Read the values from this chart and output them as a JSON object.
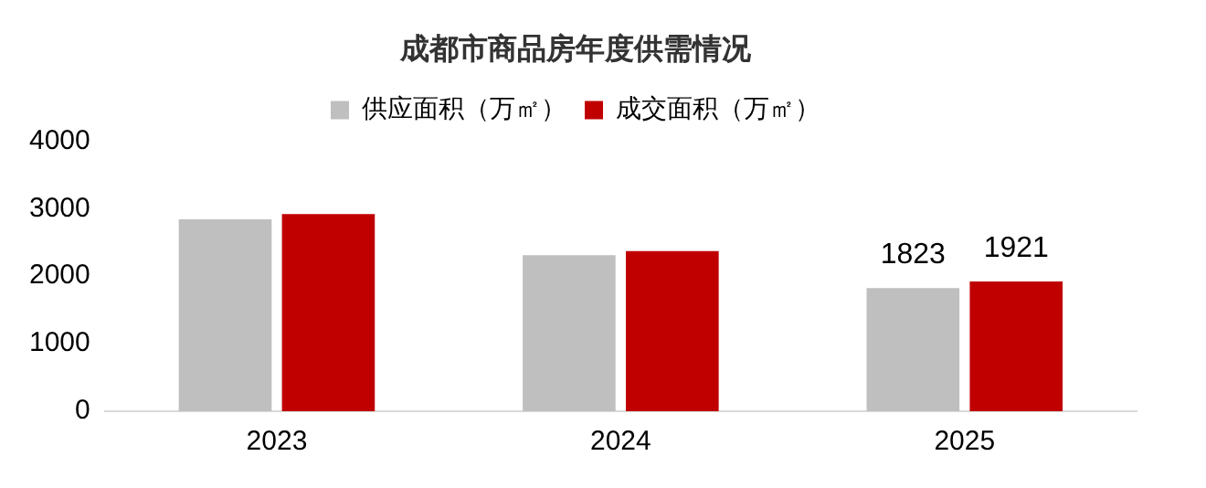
{
  "chart_data": {
    "type": "bar",
    "title": "成都市商品房年度供需情况",
    "categories": [
      "2023",
      "2024",
      "2025"
    ],
    "series": [
      {
        "name": "供应面积（万㎡）",
        "color": "#bfbfbf",
        "values": [
          2840,
          2310,
          1823
        ],
        "value_labels": [
          null,
          null,
          "1823"
        ]
      },
      {
        "name": "成交面积（万㎡）",
        "color": "#c00000",
        "values": [
          2920,
          2370,
          1921
        ],
        "value_labels": [
          null,
          null,
          "1921"
        ]
      }
    ],
    "ylim": [
      0,
      4000
    ],
    "yticks": [
      0,
      1000,
      2000,
      3000,
      4000
    ],
    "grid": false,
    "legend": "top"
  }
}
